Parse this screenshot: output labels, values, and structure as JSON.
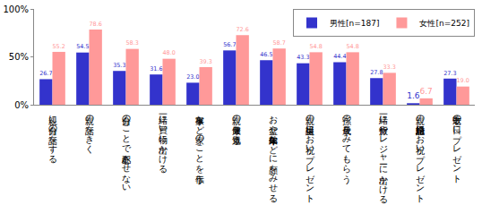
{
  "chart_data": {
    "type": "bar",
    "categories": [
      "親に自分の話をする",
      "親の話をきく",
      "自分のことで心配させない",
      "一緒に買い物に出かける",
      "家事など家のことを手伝う",
      "親の健康を気遣う",
      "お盆や年末年始などに顔をみせる",
      "親の誕生日にお祝い・プレゼント",
      "孫の成長をみてもらう",
      "一緒に旅行やレジャーに出かける",
      "親の結婚記念日にお祝い・プレゼント",
      "敬老の日にプレゼント"
    ],
    "series": [
      {
        "name": "男性[n=187]",
        "color": "#3333cc",
        "values": [
          26.7,
          54.5,
          35.3,
          31.6,
          23.0,
          56.7,
          46.5,
          43.3,
          44.4,
          27.8,
          1.6,
          27.3
        ],
        "value_labels": [
          "26.7",
          "54.5",
          "35.3",
          "31.6",
          "23.0",
          "56.7",
          "46.5",
          "43.3",
          "44.4",
          "27.8",
          "1.6",
          "27.3"
        ]
      },
      {
        "name": "女性[n=252]",
        "color": "#ff9999",
        "values": [
          55.2,
          78.6,
          58.3,
          48.0,
          39.3,
          72.6,
          58.7,
          54.8,
          54.8,
          33.3,
          6.7,
          19.0
        ],
        "value_labels": [
          "55.2",
          "78.6",
          "58.3",
          "48.0",
          "39.3",
          "72.6",
          "58.7",
          "54.8",
          "54.8",
          "33.3",
          "6.7",
          "19.0"
        ]
      }
    ],
    "ylim": [
      0,
      100
    ],
    "yticks": [
      {
        "value": 0,
        "label": "0%"
      },
      {
        "value": 50,
        "label": "50%"
      },
      {
        "value": 100,
        "label": "100%"
      }
    ],
    "grid": false,
    "legend": "top-right",
    "data_labels": true
  }
}
